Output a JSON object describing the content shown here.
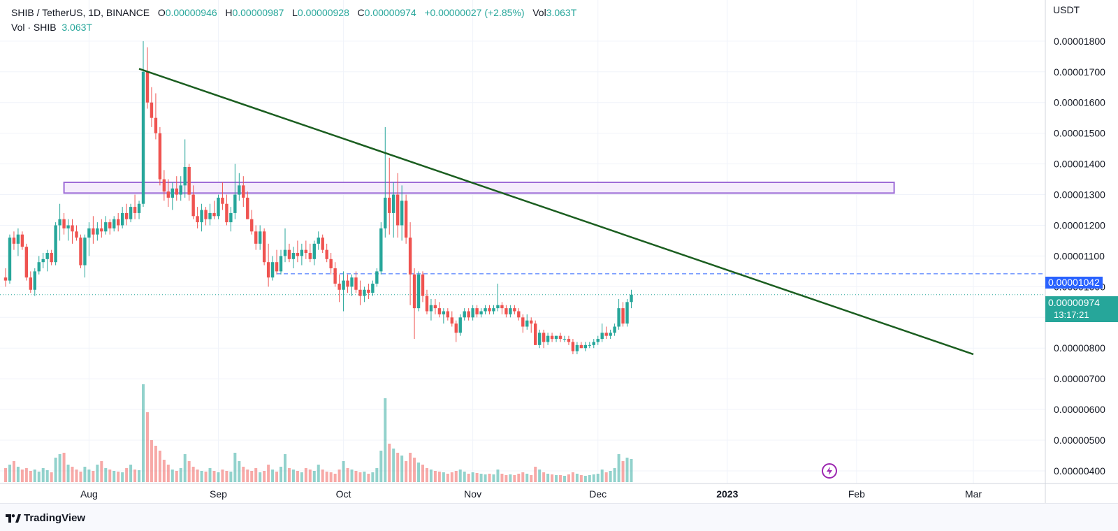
{
  "header": {
    "symbol": "SHIB / TetherUS, 1D, BINANCE",
    "o_label": "O",
    "o_value": "0.00000946",
    "h_label": "H",
    "h_value": "0.00000987",
    "l_label": "L",
    "l_value": "0.00000928",
    "c_label": "C",
    "c_value": "0.00000974",
    "change": "+0.00000027 (+2.85%)",
    "vol_label": "Vol",
    "vol_value": "3.063T",
    "vol_series_label": "Vol · SHIB",
    "vol_series_value": "3.063T"
  },
  "unit": "USDT",
  "price_tags": {
    "dashed_level": "0.00001042",
    "last_price": "0.00000974",
    "countdown": "13:17:21"
  },
  "footer": {
    "brand": "TradingView"
  },
  "colors": {
    "up": "#26a69a",
    "down": "#ef5350",
    "trendline": "#1b5e20",
    "zone_border": "#9c6ad6",
    "zone_fill": "#f3e9fb",
    "dashed_line": "#2962ff"
  },
  "chart_data": {
    "type": "candlestick",
    "pair": "SHIB / TetherUS",
    "timeframe": "1D",
    "exchange": "BINANCE",
    "x_ticks": [
      "Aug",
      "Sep",
      "Oct",
      "Nov",
      "Dec",
      "2023",
      "Feb",
      "Mar"
    ],
    "y_ticks": [
      "0.00001800",
      "0.00001700",
      "0.00001600",
      "0.00001500",
      "0.00001400",
      "0.00001300",
      "0.00001200",
      "0.00001100",
      "0.00001000",
      "0.00000900",
      "0.00000800",
      "0.00000700",
      "0.00000600",
      "0.00000500",
      "0.00000400"
    ],
    "ylim": [
      4e-06,
      1.87e-05
    ],
    "start_date": "2022-07-12",
    "horizontal_zone": {
      "low": 1.305e-05,
      "high": 1.34e-05,
      "from": "2022-07-26",
      "to": "2023-02-10"
    },
    "trendline": {
      "from": {
        "date": "2022-08-13",
        "price": 1.71e-05
      },
      "to": {
        "date": "2023-03-01",
        "price": 7.8e-06
      }
    },
    "dashed_level": {
      "price": 1.042e-05,
      "from": "2022-09-15"
    },
    "last_price": 9.74e-06,
    "candles": [
      [
        1.03,
        1.06,
        1.0,
        1.02
      ],
      [
        1.02,
        1.17,
        1.01,
        1.16
      ],
      [
        1.16,
        1.18,
        1.12,
        1.14
      ],
      [
        1.14,
        1.19,
        1.1,
        1.17
      ],
      [
        1.17,
        1.18,
        1.12,
        1.13
      ],
      [
        1.13,
        1.14,
        1.02,
        1.03
      ],
      [
        1.03,
        1.05,
        0.98,
        0.99
      ],
      [
        0.99,
        1.06,
        0.97,
        1.05
      ],
      [
        1.05,
        1.1,
        1.04,
        1.08
      ],
      [
        1.08,
        1.11,
        1.06,
        1.09
      ],
      [
        1.09,
        1.12,
        1.05,
        1.11
      ],
      [
        1.11,
        1.12,
        1.07,
        1.08
      ],
      [
        1.08,
        1.21,
        1.07,
        1.2
      ],
      [
        1.2,
        1.27,
        1.15,
        1.22
      ],
      [
        1.22,
        1.24,
        1.17,
        1.19
      ],
      [
        1.19,
        1.22,
        1.15,
        1.2
      ],
      [
        1.2,
        1.22,
        1.14,
        1.18
      ],
      [
        1.18,
        1.2,
        1.15,
        1.16
      ],
      [
        1.16,
        1.17,
        1.06,
        1.07
      ],
      [
        1.07,
        1.17,
        1.03,
        1.16
      ],
      [
        1.16,
        1.21,
        1.1,
        1.19
      ],
      [
        1.19,
        1.23,
        1.14,
        1.17
      ],
      [
        1.17,
        1.21,
        1.15,
        1.19
      ],
      [
        1.19,
        1.22,
        1.16,
        1.18
      ],
      [
        1.18,
        1.23,
        1.17,
        1.21
      ],
      [
        1.21,
        1.22,
        1.17,
        1.19
      ],
      [
        1.19,
        1.23,
        1.18,
        1.22
      ],
      [
        1.22,
        1.24,
        1.18,
        1.2
      ],
      [
        1.2,
        1.26,
        1.19,
        1.24
      ],
      [
        1.24,
        1.27,
        1.2,
        1.22
      ],
      [
        1.22,
        1.27,
        1.21,
        1.26
      ],
      [
        1.26,
        1.3,
        1.22,
        1.24
      ],
      [
        1.24,
        1.28,
        1.22,
        1.27
      ],
      [
        1.27,
        1.8,
        1.26,
        1.7
      ],
      [
        1.7,
        1.78,
        1.58,
        1.6
      ],
      [
        1.6,
        1.65,
        1.52,
        1.55
      ],
      [
        1.55,
        1.63,
        1.48,
        1.5
      ],
      [
        1.5,
        1.52,
        1.33,
        1.35
      ],
      [
        1.35,
        1.38,
        1.28,
        1.31
      ],
      [
        1.31,
        1.35,
        1.26,
        1.29
      ],
      [
        1.29,
        1.34,
        1.25,
        1.32
      ],
      [
        1.32,
        1.36,
        1.28,
        1.3
      ],
      [
        1.3,
        1.36,
        1.28,
        1.33
      ],
      [
        1.33,
        1.48,
        1.29,
        1.39
      ],
      [
        1.39,
        1.4,
        1.28,
        1.3
      ],
      [
        1.3,
        1.33,
        1.22,
        1.23
      ],
      [
        1.23,
        1.26,
        1.19,
        1.21
      ],
      [
        1.21,
        1.27,
        1.18,
        1.25
      ],
      [
        1.25,
        1.26,
        1.2,
        1.22
      ],
      [
        1.22,
        1.27,
        1.2,
        1.24
      ],
      [
        1.24,
        1.28,
        1.22,
        1.23
      ],
      [
        1.23,
        1.3,
        1.22,
        1.29
      ],
      [
        1.29,
        1.34,
        1.25,
        1.27
      ],
      [
        1.27,
        1.3,
        1.2,
        1.21
      ],
      [
        1.21,
        1.26,
        1.18,
        1.24
      ],
      [
        1.24,
        1.4,
        1.22,
        1.3
      ],
      [
        1.3,
        1.37,
        1.28,
        1.33
      ],
      [
        1.33,
        1.36,
        1.26,
        1.29
      ],
      [
        1.29,
        1.31,
        1.22,
        1.22
      ],
      [
        1.22,
        1.25,
        1.17,
        1.18
      ],
      [
        1.18,
        1.2,
        1.12,
        1.14
      ],
      [
        1.14,
        1.2,
        1.12,
        1.18
      ],
      [
        1.18,
        1.19,
        1.07,
        1.08
      ],
      [
        1.08,
        1.14,
        1.0,
        1.03
      ],
      [
        1.03,
        1.1,
        1.02,
        1.08
      ],
      [
        1.08,
        1.12,
        1.04,
        1.05
      ],
      [
        1.05,
        1.12,
        1.04,
        1.1
      ],
      [
        1.1,
        1.19,
        1.08,
        1.12
      ],
      [
        1.12,
        1.14,
        1.08,
        1.09
      ],
      [
        1.09,
        1.13,
        1.06,
        1.11
      ],
      [
        1.11,
        1.15,
        1.08,
        1.1
      ],
      [
        1.1,
        1.14,
        1.07,
        1.12
      ],
      [
        1.12,
        1.15,
        1.09,
        1.11
      ],
      [
        1.11,
        1.14,
        1.08,
        1.09
      ],
      [
        1.09,
        1.15,
        1.07,
        1.14
      ],
      [
        1.14,
        1.18,
        1.12,
        1.16
      ],
      [
        1.16,
        1.17,
        1.11,
        1.12
      ],
      [
        1.12,
        1.14,
        1.08,
        1.09
      ],
      [
        1.09,
        1.11,
        1.04,
        1.06
      ],
      [
        1.06,
        1.08,
        1.0,
        1.01
      ],
      [
        1.01,
        1.04,
        0.95,
        0.99
      ],
      [
        0.99,
        1.05,
        0.92,
        1.02
      ],
      [
        1.02,
        1.04,
        0.98,
        1.0
      ],
      [
        1.0,
        1.04,
        0.97,
        1.03
      ],
      [
        1.03,
        1.05,
        0.98,
        0.99
      ],
      [
        0.99,
        1.02,
        0.94,
        0.97
      ],
      [
        0.97,
        1.0,
        0.95,
        0.99
      ],
      [
        0.99,
        1.01,
        0.96,
        0.98
      ],
      [
        0.98,
        1.02,
        0.97,
        1.01
      ],
      [
        1.01,
        1.06,
        1.0,
        1.05
      ],
      [
        1.05,
        1.21,
        1.04,
        1.19
      ],
      [
        1.19,
        1.52,
        1.16,
        1.29
      ],
      [
        1.29,
        1.42,
        1.17,
        1.24
      ],
      [
        1.24,
        1.34,
        1.16,
        1.3
      ],
      [
        1.3,
        1.37,
        1.16,
        1.2
      ],
      [
        1.2,
        1.33,
        1.15,
        1.28
      ],
      [
        1.28,
        1.3,
        1.14,
        1.16
      ],
      [
        1.16,
        1.21,
        0.94,
        1.04
      ],
      [
        1.04,
        1.06,
        0.83,
        0.93
      ],
      [
        0.93,
        1.05,
        0.92,
        1.04
      ],
      [
        1.04,
        1.05,
        0.95,
        0.97
      ],
      [
        0.97,
        0.99,
        0.91,
        0.92
      ],
      [
        0.92,
        0.96,
        0.89,
        0.94
      ],
      [
        0.94,
        0.96,
        0.91,
        0.93
      ],
      [
        0.93,
        0.95,
        0.9,
        0.91
      ],
      [
        0.91,
        0.93,
        0.88,
        0.92
      ],
      [
        0.92,
        0.93,
        0.89,
        0.9
      ],
      [
        0.9,
        0.92,
        0.87,
        0.88
      ],
      [
        0.88,
        0.89,
        0.82,
        0.85
      ],
      [
        0.85,
        0.91,
        0.84,
        0.9
      ],
      [
        0.9,
        0.93,
        0.89,
        0.92
      ],
      [
        0.92,
        0.93,
        0.89,
        0.9
      ],
      [
        0.9,
        0.94,
        0.89,
        0.93
      ],
      [
        0.93,
        0.94,
        0.9,
        0.91
      ],
      [
        0.91,
        0.93,
        0.9,
        0.92
      ],
      [
        0.92,
        0.94,
        0.91,
        0.93
      ],
      [
        0.93,
        0.94,
        0.91,
        0.92
      ],
      [
        0.92,
        0.94,
        0.91,
        0.93
      ],
      [
        0.93,
        1.01,
        0.92,
        0.94
      ],
      [
        0.94,
        0.95,
        0.91,
        0.93
      ],
      [
        0.93,
        0.94,
        0.9,
        0.91
      ],
      [
        0.91,
        0.94,
        0.9,
        0.93
      ],
      [
        0.93,
        0.94,
        0.91,
        0.92
      ],
      [
        0.92,
        0.93,
        0.89,
        0.9
      ],
      [
        0.9,
        0.91,
        0.85,
        0.87
      ],
      [
        0.87,
        0.91,
        0.86,
        0.89
      ],
      [
        0.89,
        0.9,
        0.85,
        0.88
      ],
      [
        0.88,
        0.89,
        0.81,
        0.81
      ],
      [
        0.81,
        0.86,
        0.8,
        0.85
      ],
      [
        0.85,
        0.86,
        0.8,
        0.82
      ],
      [
        0.82,
        0.85,
        0.81,
        0.84
      ],
      [
        0.84,
        0.85,
        0.82,
        0.83
      ],
      [
        0.83,
        0.84,
        0.82,
        0.84
      ],
      [
        0.84,
        0.85,
        0.82,
        0.83
      ],
      [
        0.83,
        0.84,
        0.82,
        0.83
      ],
      [
        0.83,
        0.84,
        0.81,
        0.82
      ],
      [
        0.82,
        0.83,
        0.78,
        0.79
      ],
      [
        0.79,
        0.82,
        0.78,
        0.81
      ],
      [
        0.81,
        0.82,
        0.8,
        0.8
      ],
      [
        0.8,
        0.82,
        0.79,
        0.81
      ],
      [
        0.81,
        0.82,
        0.8,
        0.81
      ],
      [
        0.81,
        0.83,
        0.8,
        0.82
      ],
      [
        0.82,
        0.84,
        0.81,
        0.83
      ],
      [
        0.83,
        0.88,
        0.82,
        0.85
      ],
      [
        0.85,
        0.87,
        0.83,
        0.84
      ],
      [
        0.84,
        0.86,
        0.83,
        0.85
      ],
      [
        0.85,
        0.88,
        0.84,
        0.87
      ],
      [
        0.87,
        0.96,
        0.86,
        0.93
      ],
      [
        0.93,
        0.95,
        0.87,
        0.88
      ],
      [
        0.88,
        0.96,
        0.87,
        0.95
      ],
      [
        0.95,
        0.99,
        0.93,
        0.974
      ]
    ],
    "volumes": [
      0.2,
      0.25,
      0.3,
      0.22,
      0.18,
      0.2,
      0.16,
      0.18,
      0.15,
      0.2,
      0.17,
      0.14,
      0.35,
      0.4,
      0.42,
      0.25,
      0.22,
      0.18,
      0.15,
      0.22,
      0.18,
      0.16,
      0.25,
      0.3,
      0.2,
      0.18,
      0.16,
      0.15,
      0.14,
      0.2,
      0.25,
      0.18,
      0.17,
      1.4,
      1.0,
      0.6,
      0.52,
      0.45,
      0.32,
      0.25,
      0.18,
      0.16,
      0.2,
      0.4,
      0.3,
      0.22,
      0.18,
      0.16,
      0.15,
      0.2,
      0.16,
      0.14,
      0.18,
      0.16,
      0.15,
      0.42,
      0.3,
      0.22,
      0.18,
      0.16,
      0.2,
      0.14,
      0.16,
      0.25,
      0.18,
      0.15,
      0.22,
      0.4,
      0.2,
      0.18,
      0.16,
      0.14,
      0.2,
      0.18,
      0.16,
      0.25,
      0.18,
      0.15,
      0.14,
      0.12,
      0.18,
      0.3,
      0.2,
      0.18,
      0.16,
      0.14,
      0.15,
      0.12,
      0.14,
      0.2,
      0.45,
      1.2,
      0.55,
      0.48,
      0.42,
      0.38,
      0.3,
      0.42,
      0.35,
      0.28,
      0.25,
      0.2,
      0.18,
      0.16,
      0.15,
      0.14,
      0.12,
      0.14,
      0.16,
      0.18,
      0.15,
      0.12,
      0.14,
      0.13,
      0.12,
      0.11,
      0.12,
      0.11,
      0.18,
      0.12,
      0.1,
      0.11,
      0.1,
      0.12,
      0.14,
      0.12,
      0.1,
      0.22,
      0.18,
      0.14,
      0.12,
      0.11,
      0.1,
      0.1,
      0.09,
      0.11,
      0.14,
      0.12,
      0.1,
      0.09,
      0.1,
      0.11,
      0.12,
      0.18,
      0.14,
      0.16,
      0.2,
      0.4,
      0.3,
      0.35,
      0.33
    ]
  }
}
